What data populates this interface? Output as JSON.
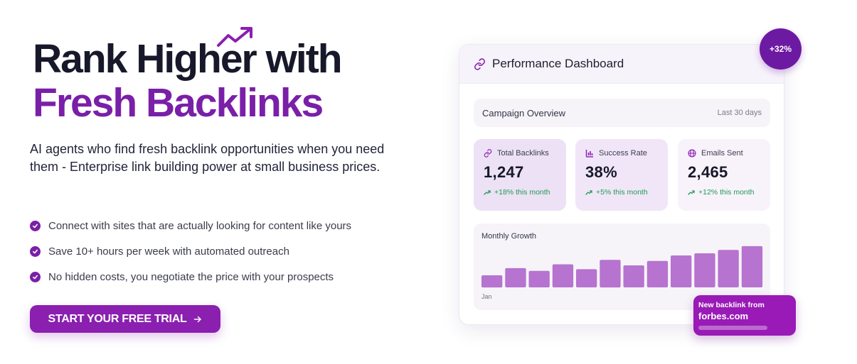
{
  "hero": {
    "title_line1": "Rank Higher with",
    "title_line2": "Fresh Backlinks",
    "description": "AI agents who find fresh backlink opportunities when you need them - Enterprise link building power at small business prices.",
    "features": [
      "Connect with sites that are actually looking for content like yours",
      "Save 10+ hours per week with automated outreach",
      "No hidden costs, you negotiate the price with your prospects"
    ],
    "cta_label": "START YOUR FREE TRIAL",
    "cta_icon": "arrow-right-icon"
  },
  "dashboard": {
    "title": "Performance Dashboard",
    "title_icon": "link-icon",
    "badge": "+32%",
    "overview": {
      "title": "Campaign Overview",
      "range": "Last 30 days"
    },
    "stats": [
      {
        "icon": "link-icon",
        "label": "Total Backlinks",
        "value": "1,247",
        "change": "+18% this month"
      },
      {
        "icon": "bar-chart-icon",
        "label": "Success Rate",
        "value": "38%",
        "change": "+5% this month"
      },
      {
        "icon": "globe-icon",
        "label": "Emails Sent",
        "value": "2,465",
        "change": "+12% this month"
      }
    ],
    "notification": {
      "line1": "New backlink from",
      "line2": "forbes.com"
    }
  },
  "colors": {
    "accent": "#7a1fa8",
    "cta": "#8a1fb0",
    "badge": "#6d1aa3",
    "positive": "#1f9a55",
    "bar": "#b673cf"
  },
  "chart_data": {
    "type": "bar",
    "title": "Monthly Growth",
    "categories": [
      "Jan",
      "",
      "",
      "",
      "",
      "",
      "",
      "",
      "",
      "",
      "",
      ""
    ],
    "values": [
      22,
      35,
      30,
      42,
      33,
      50,
      40,
      48,
      58,
      62,
      68,
      75
    ],
    "ylim": [
      0,
      100
    ],
    "grid": false
  }
}
